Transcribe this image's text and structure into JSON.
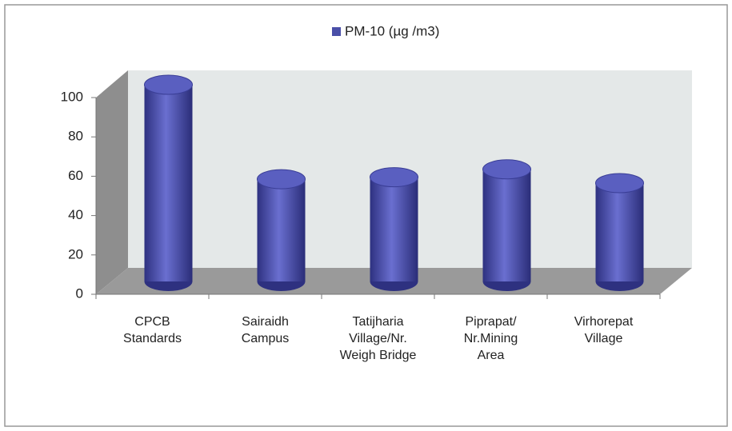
{
  "chart_data": {
    "type": "bar",
    "categories": [
      "CPCB Standards",
      "Sairaidh Campus",
      "Tatijharia Village/Nr. Weigh Bridge",
      "Piprapat/ Nr.Mining Area",
      "Virhorepat Village"
    ],
    "series": [
      {
        "name": "PM-10 (µg /m3)",
        "color": "#4a4fa8",
        "values": [
          100,
          52,
          53,
          57,
          50
        ]
      }
    ],
    "ylim": [
      0,
      100
    ],
    "yticks": [
      0,
      20,
      40,
      60,
      80,
      100
    ],
    "legend": "top"
  }
}
